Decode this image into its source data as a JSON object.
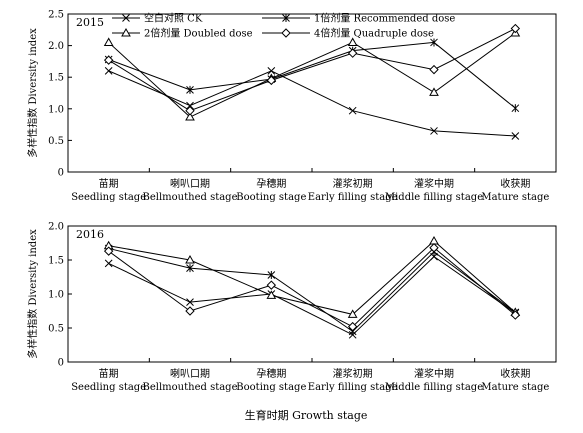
{
  "chart_data": [
    {
      "type": "line",
      "year_label": "2015",
      "categories": [
        {
          "cn": "苗期",
          "en": "Seedling stage"
        },
        {
          "cn": "喇叭口期",
          "en": "Bellmouthed stage"
        },
        {
          "cn": "孕穗期",
          "en": "Booting stage"
        },
        {
          "cn": "灌浆初期",
          "en": "Early filling stage"
        },
        {
          "cn": "灌浆中期",
          "en": "Middle filling stage"
        },
        {
          "cn": "收获期",
          "en": "Mature stage"
        }
      ],
      "ylabel": "多样性指数 Diversity index",
      "ylim": [
        0,
        2.5
      ],
      "yticks": [
        "0",
        "0.5",
        "1.0",
        "1.5",
        "2.0",
        "2.5"
      ],
      "legend": [
        {
          "label": "空白对照 CK",
          "marker": "x"
        },
        {
          "label": "1倍剂量 Recommended dose",
          "marker": "star"
        },
        {
          "label": "2倍剂量 Doubled dose",
          "marker": "triangle"
        },
        {
          "label": "4倍剂量 Quadruple dose",
          "marker": "diamond"
        }
      ],
      "series": [
        {
          "name": "空白对照 CK",
          "marker": "x",
          "values": [
            1.6,
            1.05,
            1.6,
            0.97,
            0.65,
            0.57
          ]
        },
        {
          "name": "1倍剂量 Recommended dose",
          "marker": "star",
          "values": [
            1.78,
            1.3,
            1.47,
            1.92,
            2.05,
            1.01
          ]
        },
        {
          "name": "2倍剂量 Doubled dose",
          "marker": "triangle",
          "values": [
            2.05,
            0.87,
            1.48,
            2.05,
            1.26,
            2.2
          ]
        },
        {
          "name": "4倍剂量 Quadruple dose",
          "marker": "diamond",
          "values": [
            1.77,
            0.97,
            1.45,
            1.88,
            1.62,
            2.27
          ]
        }
      ]
    },
    {
      "type": "line",
      "year_label": "2016",
      "categories": [
        {
          "cn": "苗期",
          "en": "Seedling stage"
        },
        {
          "cn": "喇叭口期",
          "en": "Bellmouthed stage"
        },
        {
          "cn": "孕穗期",
          "en": "Booting stage"
        },
        {
          "cn": "灌浆初期",
          "en": "Early filling stage"
        },
        {
          "cn": "灌浆中期",
          "en": "Middle filling stage"
        },
        {
          "cn": "收获期",
          "en": "Mature stage"
        }
      ],
      "ylabel": "多样性指数 Diversity index",
      "ylim": [
        0,
        2.0
      ],
      "yticks": [
        "0",
        "0.5",
        "1.0",
        "1.5",
        "2.0"
      ],
      "series": [
        {
          "name": "空白对照 CK",
          "marker": "x",
          "values": [
            1.45,
            0.88,
            1.0,
            0.4,
            1.55,
            0.72
          ]
        },
        {
          "name": "1倍剂量 Recommended dose",
          "marker": "star",
          "values": [
            1.67,
            1.38,
            1.28,
            0.45,
            1.62,
            0.73
          ]
        },
        {
          "name": "2倍剂量 Doubled dose",
          "marker": "triangle",
          "values": [
            1.71,
            1.5,
            0.98,
            0.7,
            1.78,
            0.73
          ]
        },
        {
          "name": "4倍剂量 Quadruple dose",
          "marker": "diamond",
          "values": [
            1.63,
            0.75,
            1.13,
            0.52,
            1.68,
            0.69
          ]
        }
      ]
    }
  ],
  "figure": {
    "xlabel": "生育时期 Growth stage"
  }
}
